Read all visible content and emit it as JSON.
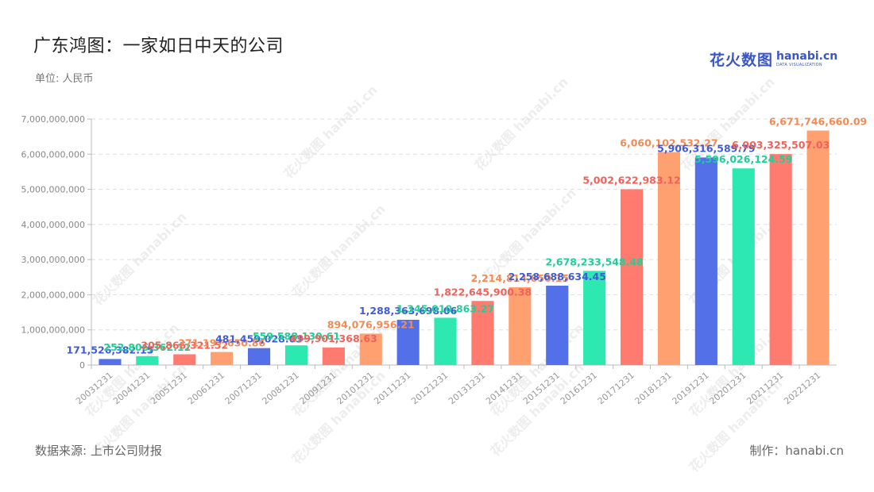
{
  "header": {
    "title": "广东鸿图：一家如日中天的公司",
    "unit": "单位: 人民币"
  },
  "brand": {
    "cn": "花火数图",
    "en": "hanabi.cn",
    "sub": "DATA VISUALIZATION",
    "color": "#3a55c8"
  },
  "watermark": "花火数图 hanabi.cn",
  "footer": {
    "source": "数据来源: 上市公司财报",
    "maker": "制作：hanabi.cn"
  },
  "chart_data": {
    "type": "bar",
    "categories": [
      "20031231",
      "20041231",
      "20051231",
      "20061231",
      "20071231",
      "20081231",
      "20091231",
      "20101231",
      "20111231",
      "20121231",
      "20131231",
      "20141231",
      "20151231",
      "20161231",
      "20171231",
      "20181231",
      "20191231",
      "20201231",
      "20211231",
      "20221231"
    ],
    "values": [
      171526382.15,
      252806362.12,
      305866321.52,
      371197650.86,
      481459028.03,
      559588130.61,
      499901368.63,
      894076956.21,
      1288363698.06,
      1345010863.27,
      1822645900.38,
      2214814050.15,
      2258688634.45,
      2678233548.48,
      5002622983.12,
      6060102532.27,
      5906316589.79,
      5596026124.59,
      6003325507.03,
      6671746660.09
    ],
    "labels": [
      "171,526,382.15",
      "252,806,362.12",
      "305,866,321.52",
      "371,197,650.86",
      "481,459,028.03",
      "559,588,130.61",
      "499,901,368.63",
      "894,076,956.21",
      "1,288,363,698.06",
      "1,345,010,863.27",
      "1,822,645,900.38",
      "2,214,814,050.15",
      "2,258,688,634.45",
      "2,678,233,548.48",
      "5,002,622,983.12",
      "6,060,102,532.27",
      "5,906,316,589.79",
      "5,596,026,124.59",
      "6,003,325,507.03",
      "6,671,746,660.09"
    ],
    "colors": [
      "#5470e8",
      "#2de8b0",
      "#ff7b70",
      "#ffa070"
    ],
    "label_colors": [
      "#3f5bd6",
      "#1fcf98",
      "#f2605a",
      "#f28a55"
    ],
    "yticks": [
      0,
      1000000000,
      2000000000,
      3000000000,
      4000000000,
      5000000000,
      6000000000,
      7000000000
    ],
    "ytick_labels": [
      "0",
      "1,000,000,000",
      "2,000,000,000",
      "3,000,000,000",
      "4,000,000,000",
      "5,000,000,000",
      "6,000,000,000",
      "7,000,000,000"
    ],
    "ylim": [
      0,
      7000000000
    ],
    "grid": true,
    "xlabel": "",
    "ylabel": ""
  }
}
